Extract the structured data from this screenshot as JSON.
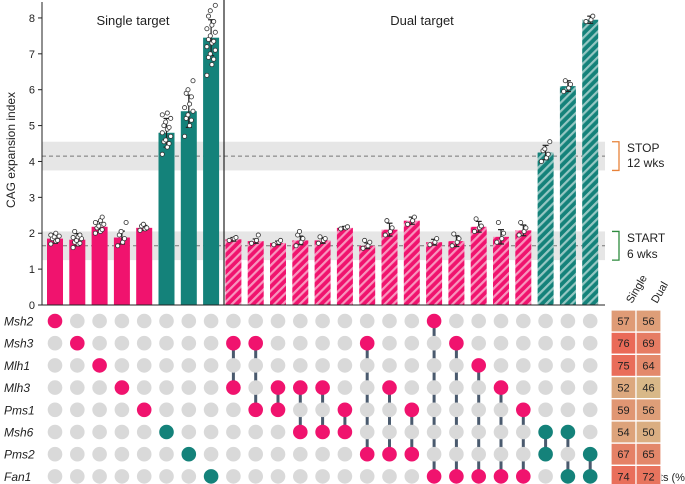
{
  "chart_data": {
    "type": "bar",
    "ylabel": "CAG expansion index",
    "ylim": [
      0,
      8.5
    ],
    "yticks": [
      0,
      1,
      2,
      3,
      4,
      5,
      6,
      7,
      8
    ],
    "grid": false,
    "panel_titles": {
      "single": "Single target",
      "dual": "Dual target"
    },
    "reference_bands": [
      {
        "name": "STOP",
        "label_lines": [
          "STOP",
          "12 wks"
        ],
        "mean": 4.15,
        "range": [
          3.75,
          4.55
        ],
        "color": "#e8823a"
      },
      {
        "name": "START",
        "label_lines": [
          "START",
          "6 wks"
        ],
        "mean": 1.65,
        "range": [
          1.25,
          2.05
        ],
        "color": "#2e8b3e"
      }
    ],
    "colors": {
      "pink": "#f0136e",
      "teal": "#14827a",
      "dot_off": "#d9d9d9",
      "connector": "#4a5a6e",
      "band": "#e6e6e6"
    },
    "genes": [
      "Msh2",
      "Msh3",
      "Mlh1",
      "Mlh3",
      "Pms1",
      "Msh6",
      "Pms2",
      "Fan1"
    ],
    "frameshift_legend": {
      "column_headers": [
        "Single",
        "Dual"
      ],
      "axis_label": "Frameshifts (%)"
    },
    "frameshifts": {
      "Msh2": [
        57,
        56
      ],
      "Msh3": [
        76,
        69
      ],
      "Mlh1": [
        75,
        64
      ],
      "Mlh3": [
        52,
        46
      ],
      "Pms1": [
        59,
        56
      ],
      "Msh6": [
        54,
        50
      ],
      "Pms2": [
        67,
        65
      ],
      "Fan1": [
        74,
        72
      ]
    },
    "bars": [
      {
        "group": "single",
        "targets": [
          "Msh2"
        ],
        "value": 1.85,
        "err": 0.13,
        "color": "pink",
        "hatch": false,
        "points": [
          1.7,
          1.8,
          1.85,
          1.9,
          1.95,
          2.0,
          1.78,
          1.92
        ]
      },
      {
        "group": "single",
        "targets": [
          "Msh3"
        ],
        "value": 1.82,
        "err": 0.17,
        "color": "pink",
        "hatch": false,
        "points": [
          1.6,
          1.7,
          1.75,
          1.8,
          1.85,
          1.9,
          1.95,
          2.05,
          1.72,
          1.88
        ]
      },
      {
        "group": "single",
        "targets": [
          "Mlh1"
        ],
        "value": 2.18,
        "err": 0.15,
        "color": "pink",
        "hatch": false,
        "points": [
          2.0,
          2.1,
          2.15,
          2.2,
          2.25,
          2.3,
          2.45,
          2.05,
          2.35
        ]
      },
      {
        "group": "single",
        "targets": [
          "Mlh3"
        ],
        "value": 1.88,
        "err": 0.18,
        "color": "pink",
        "hatch": false,
        "points": [
          1.65,
          1.75,
          1.85,
          1.95,
          2.05,
          2.3
        ]
      },
      {
        "group": "single",
        "targets": [
          "Pms1"
        ],
        "value": 2.15,
        "err": 0.07,
        "color": "pink",
        "hatch": false,
        "points": [
          2.08,
          2.12,
          2.15,
          2.2,
          2.25
        ]
      },
      {
        "group": "single",
        "targets": [
          "Msh6"
        ],
        "value": 4.8,
        "err": 0.4,
        "color": "teal",
        "hatch": false,
        "points": [
          4.2,
          4.4,
          4.5,
          4.6,
          4.7,
          4.8,
          4.9,
          5.0,
          5.1,
          5.2,
          5.3,
          5.35,
          4.55,
          4.95
        ]
      },
      {
        "group": "single",
        "targets": [
          "Pms2"
        ],
        "value": 5.4,
        "err": 0.45,
        "color": "teal",
        "hatch": false,
        "points": [
          4.7,
          5.0,
          5.2,
          5.3,
          5.4,
          5.5,
          5.6,
          5.8,
          5.9,
          6.0,
          6.25,
          5.15
        ]
      },
      {
        "group": "single",
        "targets": [
          "Fan1"
        ],
        "value": 7.45,
        "err": 0.5,
        "color": "teal",
        "hatch": false,
        "points": [
          6.4,
          6.7,
          6.9,
          7.0,
          7.1,
          7.2,
          7.3,
          7.4,
          7.5,
          7.6,
          7.7,
          7.8,
          7.9,
          8.05,
          8.2,
          8.35,
          7.35,
          6.85
        ]
      },
      {
        "group": "dual",
        "targets": [
          "Msh3",
          "Mlh3"
        ],
        "value": 1.83,
        "err": 0.05,
        "color": "pink",
        "hatch": true,
        "points": [
          1.8,
          1.85,
          1.88
        ]
      },
      {
        "group": "dual",
        "targets": [
          "Msh3",
          "Pms1"
        ],
        "value": 1.78,
        "err": 0.06,
        "color": "pink",
        "hatch": true,
        "points": [
          1.72,
          1.8,
          1.95
        ]
      },
      {
        "group": "dual",
        "targets": [
          "Mlh3",
          "Pms1"
        ],
        "value": 1.73,
        "err": 0.05,
        "color": "pink",
        "hatch": true,
        "points": [
          1.68,
          1.75,
          1.8
        ]
      },
      {
        "group": "dual",
        "targets": [
          "Mlh3",
          "Msh6"
        ],
        "value": 1.8,
        "err": 0.12,
        "color": "pink",
        "hatch": true,
        "points": [
          1.65,
          1.75,
          1.85,
          1.95,
          2.05
        ]
      },
      {
        "group": "dual",
        "targets": [
          "Mlh3",
          "Msh6"
        ],
        "value": 1.8,
        "err": 0.08,
        "color": "pink",
        "hatch": true,
        "points": [
          1.72,
          1.8,
          1.85,
          1.9
        ]
      },
      {
        "group": "dual",
        "targets": [
          "Pms1",
          "Msh6"
        ],
        "value": 2.15,
        "err": 0.04,
        "color": "pink",
        "hatch": true,
        "points": [
          2.12,
          2.15,
          2.18
        ]
      },
      {
        "group": "dual",
        "targets": [
          "Msh3",
          "Pms2"
        ],
        "value": 1.65,
        "err": 0.08,
        "color": "pink",
        "hatch": true,
        "points": [
          1.58,
          1.65,
          1.75,
          1.8
        ]
      },
      {
        "group": "dual",
        "targets": [
          "Mlh3",
          "Pms2"
        ],
        "value": 2.1,
        "err": 0.18,
        "color": "pink",
        "hatch": true,
        "points": [
          1.95,
          2.05,
          2.15,
          2.35
        ]
      },
      {
        "group": "dual",
        "targets": [
          "Pms1",
          "Pms2"
        ],
        "value": 2.35,
        "err": 0.1,
        "color": "pink",
        "hatch": true,
        "points": [
          2.25,
          2.35,
          2.45
        ]
      },
      {
        "group": "dual",
        "targets": [
          "Msh2",
          "Fan1"
        ],
        "value": 1.75,
        "err": 0.08,
        "color": "pink",
        "hatch": true,
        "points": [
          1.68,
          1.75,
          1.85
        ]
      },
      {
        "group": "dual",
        "targets": [
          "Msh3",
          "Fan1"
        ],
        "value": 1.78,
        "err": 0.15,
        "color": "pink",
        "hatch": true,
        "points": [
          1.65,
          1.75,
          1.85,
          1.98
        ]
      },
      {
        "group": "dual",
        "targets": [
          "Mlh1",
          "Fan1"
        ],
        "value": 2.18,
        "err": 0.15,
        "color": "pink",
        "hatch": true,
        "points": [
          2.05,
          2.15,
          2.2,
          2.4
        ]
      },
      {
        "group": "dual",
        "targets": [
          "Mlh3",
          "Fan1"
        ],
        "value": 1.9,
        "err": 0.2,
        "color": "pink",
        "hatch": true,
        "points": [
          1.75,
          1.85,
          2.0,
          2.3
        ]
      },
      {
        "group": "dual",
        "targets": [
          "Pms1",
          "Fan1"
        ],
        "value": 2.08,
        "err": 0.15,
        "color": "pink",
        "hatch": true,
        "points": [
          1.95,
          2.05,
          2.15,
          2.3
        ]
      },
      {
        "group": "dual",
        "targets": [
          "Msh6",
          "Pms2"
        ],
        "value": 4.25,
        "err": 0.2,
        "color": "teal",
        "hatch": true,
        "points": [
          4.0,
          4.1,
          4.2,
          4.3,
          4.35,
          4.55
        ]
      },
      {
        "group": "dual",
        "targets": [
          "Msh6",
          "Fan1"
        ],
        "value": 6.1,
        "err": 0.15,
        "color": "teal",
        "hatch": true,
        "points": [
          5.95,
          6.05,
          6.15,
          6.25
        ]
      },
      {
        "group": "dual",
        "targets": [
          "Pms2",
          "Fan1"
        ],
        "value": 7.95,
        "err": 0.1,
        "color": "teal",
        "hatch": true,
        "points": [
          7.9,
          7.95,
          8.05
        ]
      }
    ]
  }
}
